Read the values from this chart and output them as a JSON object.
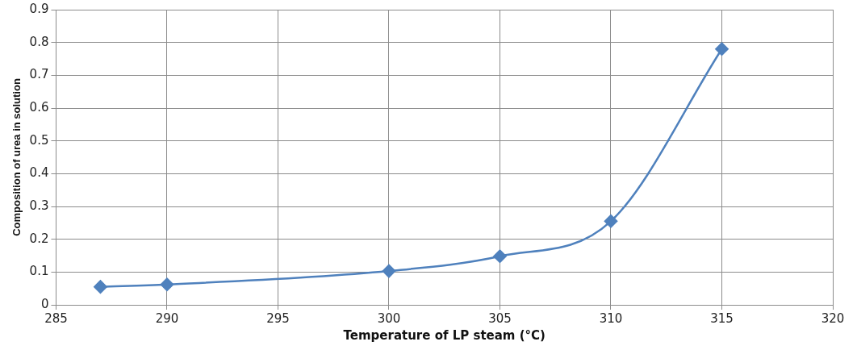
{
  "chart_data": {
    "type": "line",
    "xlabel": "Temperature of LP steam (°C)",
    "ylabel": "Composition of urea in solution",
    "x": [
      287,
      290,
      300,
      305,
      310,
      315
    ],
    "series": [
      {
        "color": "#4f81bd",
        "values": [
          0.055,
          0.062,
          0.103,
          0.148,
          0.255,
          0.78
        ]
      }
    ],
    "xlim": [
      285,
      320
    ],
    "xticks": [
      285,
      290,
      295,
      300,
      305,
      310,
      315,
      320
    ],
    "ylim": [
      0,
      0.9
    ],
    "yticks": [
      0,
      0.1,
      0.2,
      0.3,
      0.4,
      0.5,
      0.6,
      0.7,
      0.8,
      0.9
    ],
    "grid": true,
    "legend": false,
    "marker": "diamond",
    "line_style": "solid"
  }
}
